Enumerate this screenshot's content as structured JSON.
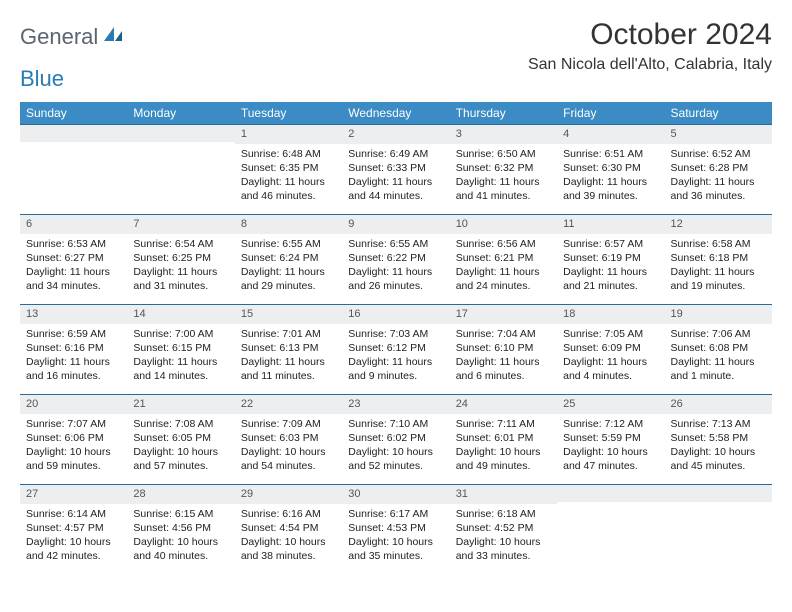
{
  "logo": {
    "general": "General",
    "blue": "Blue"
  },
  "header": {
    "title": "October 2024",
    "location": "San Nicola dell'Alto, Calabria, Italy"
  },
  "style": {
    "header_bg": "#3b8bc5",
    "header_text": "#ffffff",
    "daynum_bg": "#eceef0",
    "daynum_border": "#2a6b9a",
    "body_text": "#222222",
    "logo_gray": "#5a6570",
    "logo_blue": "#2a7bb5"
  },
  "day_headers": [
    "Sunday",
    "Monday",
    "Tuesday",
    "Wednesday",
    "Thursday",
    "Friday",
    "Saturday"
  ],
  "weeks": [
    [
      null,
      null,
      {
        "n": "1",
        "sr": "Sunrise: 6:48 AM",
        "ss": "Sunset: 6:35 PM",
        "dl1": "Daylight: 11 hours",
        "dl2": "and 46 minutes."
      },
      {
        "n": "2",
        "sr": "Sunrise: 6:49 AM",
        "ss": "Sunset: 6:33 PM",
        "dl1": "Daylight: 11 hours",
        "dl2": "and 44 minutes."
      },
      {
        "n": "3",
        "sr": "Sunrise: 6:50 AM",
        "ss": "Sunset: 6:32 PM",
        "dl1": "Daylight: 11 hours",
        "dl2": "and 41 minutes."
      },
      {
        "n": "4",
        "sr": "Sunrise: 6:51 AM",
        "ss": "Sunset: 6:30 PM",
        "dl1": "Daylight: 11 hours",
        "dl2": "and 39 minutes."
      },
      {
        "n": "5",
        "sr": "Sunrise: 6:52 AM",
        "ss": "Sunset: 6:28 PM",
        "dl1": "Daylight: 11 hours",
        "dl2": "and 36 minutes."
      }
    ],
    [
      {
        "n": "6",
        "sr": "Sunrise: 6:53 AM",
        "ss": "Sunset: 6:27 PM",
        "dl1": "Daylight: 11 hours",
        "dl2": "and 34 minutes."
      },
      {
        "n": "7",
        "sr": "Sunrise: 6:54 AM",
        "ss": "Sunset: 6:25 PM",
        "dl1": "Daylight: 11 hours",
        "dl2": "and 31 minutes."
      },
      {
        "n": "8",
        "sr": "Sunrise: 6:55 AM",
        "ss": "Sunset: 6:24 PM",
        "dl1": "Daylight: 11 hours",
        "dl2": "and 29 minutes."
      },
      {
        "n": "9",
        "sr": "Sunrise: 6:55 AM",
        "ss": "Sunset: 6:22 PM",
        "dl1": "Daylight: 11 hours",
        "dl2": "and 26 minutes."
      },
      {
        "n": "10",
        "sr": "Sunrise: 6:56 AM",
        "ss": "Sunset: 6:21 PM",
        "dl1": "Daylight: 11 hours",
        "dl2": "and 24 minutes."
      },
      {
        "n": "11",
        "sr": "Sunrise: 6:57 AM",
        "ss": "Sunset: 6:19 PM",
        "dl1": "Daylight: 11 hours",
        "dl2": "and 21 minutes."
      },
      {
        "n": "12",
        "sr": "Sunrise: 6:58 AM",
        "ss": "Sunset: 6:18 PM",
        "dl1": "Daylight: 11 hours",
        "dl2": "and 19 minutes."
      }
    ],
    [
      {
        "n": "13",
        "sr": "Sunrise: 6:59 AM",
        "ss": "Sunset: 6:16 PM",
        "dl1": "Daylight: 11 hours",
        "dl2": "and 16 minutes."
      },
      {
        "n": "14",
        "sr": "Sunrise: 7:00 AM",
        "ss": "Sunset: 6:15 PM",
        "dl1": "Daylight: 11 hours",
        "dl2": "and 14 minutes."
      },
      {
        "n": "15",
        "sr": "Sunrise: 7:01 AM",
        "ss": "Sunset: 6:13 PM",
        "dl1": "Daylight: 11 hours",
        "dl2": "and 11 minutes."
      },
      {
        "n": "16",
        "sr": "Sunrise: 7:03 AM",
        "ss": "Sunset: 6:12 PM",
        "dl1": "Daylight: 11 hours",
        "dl2": "and 9 minutes."
      },
      {
        "n": "17",
        "sr": "Sunrise: 7:04 AM",
        "ss": "Sunset: 6:10 PM",
        "dl1": "Daylight: 11 hours",
        "dl2": "and 6 minutes."
      },
      {
        "n": "18",
        "sr": "Sunrise: 7:05 AM",
        "ss": "Sunset: 6:09 PM",
        "dl1": "Daylight: 11 hours",
        "dl2": "and 4 minutes."
      },
      {
        "n": "19",
        "sr": "Sunrise: 7:06 AM",
        "ss": "Sunset: 6:08 PM",
        "dl1": "Daylight: 11 hours",
        "dl2": "and 1 minute."
      }
    ],
    [
      {
        "n": "20",
        "sr": "Sunrise: 7:07 AM",
        "ss": "Sunset: 6:06 PM",
        "dl1": "Daylight: 10 hours",
        "dl2": "and 59 minutes."
      },
      {
        "n": "21",
        "sr": "Sunrise: 7:08 AM",
        "ss": "Sunset: 6:05 PM",
        "dl1": "Daylight: 10 hours",
        "dl2": "and 57 minutes."
      },
      {
        "n": "22",
        "sr": "Sunrise: 7:09 AM",
        "ss": "Sunset: 6:03 PM",
        "dl1": "Daylight: 10 hours",
        "dl2": "and 54 minutes."
      },
      {
        "n": "23",
        "sr": "Sunrise: 7:10 AM",
        "ss": "Sunset: 6:02 PM",
        "dl1": "Daylight: 10 hours",
        "dl2": "and 52 minutes."
      },
      {
        "n": "24",
        "sr": "Sunrise: 7:11 AM",
        "ss": "Sunset: 6:01 PM",
        "dl1": "Daylight: 10 hours",
        "dl2": "and 49 minutes."
      },
      {
        "n": "25",
        "sr": "Sunrise: 7:12 AM",
        "ss": "Sunset: 5:59 PM",
        "dl1": "Daylight: 10 hours",
        "dl2": "and 47 minutes."
      },
      {
        "n": "26",
        "sr": "Sunrise: 7:13 AM",
        "ss": "Sunset: 5:58 PM",
        "dl1": "Daylight: 10 hours",
        "dl2": "and 45 minutes."
      }
    ],
    [
      {
        "n": "27",
        "sr": "Sunrise: 6:14 AM",
        "ss": "Sunset: 4:57 PM",
        "dl1": "Daylight: 10 hours",
        "dl2": "and 42 minutes."
      },
      {
        "n": "28",
        "sr": "Sunrise: 6:15 AM",
        "ss": "Sunset: 4:56 PM",
        "dl1": "Daylight: 10 hours",
        "dl2": "and 40 minutes."
      },
      {
        "n": "29",
        "sr": "Sunrise: 6:16 AM",
        "ss": "Sunset: 4:54 PM",
        "dl1": "Daylight: 10 hours",
        "dl2": "and 38 minutes."
      },
      {
        "n": "30",
        "sr": "Sunrise: 6:17 AM",
        "ss": "Sunset: 4:53 PM",
        "dl1": "Daylight: 10 hours",
        "dl2": "and 35 minutes."
      },
      {
        "n": "31",
        "sr": "Sunrise: 6:18 AM",
        "ss": "Sunset: 4:52 PM",
        "dl1": "Daylight: 10 hours",
        "dl2": "and 33 minutes."
      },
      null,
      null
    ]
  ]
}
